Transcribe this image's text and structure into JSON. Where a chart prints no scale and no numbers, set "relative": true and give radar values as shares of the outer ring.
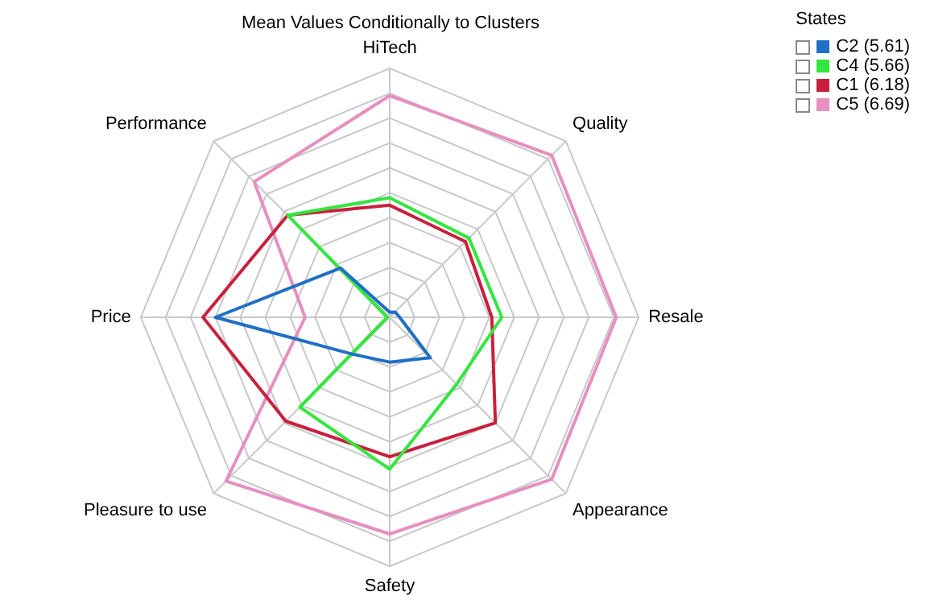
{
  "chart_data": {
    "type": "radar",
    "title": "Mean Values Conditionally to Clusters",
    "legend_title": "States",
    "relative": true,
    "grid": true,
    "legend": "top right",
    "marker": "none",
    "categories": [
      "HiTech",
      "Quality",
      "Resale",
      "Appearance",
      "Safety",
      "Pleasure to use",
      "Price",
      "Performance"
    ],
    "series": [
      {
        "name": "C2 (5.61)",
        "color": "#1f6fc5",
        "values": [
          0.02,
          0.03,
          0.04,
          0.23,
          0.18,
          0.21,
          0.7,
          0.28
        ]
      },
      {
        "name": "C4 (5.66)",
        "color": "#33e63f",
        "values": [
          0.48,
          0.45,
          0.45,
          0.38,
          0.61,
          0.51,
          0.01,
          0.58
        ]
      },
      {
        "name": "C1 (6.18)",
        "color": "#c8203c",
        "values": [
          0.45,
          0.43,
          0.41,
          0.6,
          0.56,
          0.59,
          0.75,
          0.58
        ]
      },
      {
        "name": "C5 (6.69)",
        "color": "#e68fc0",
        "values": [
          0.89,
          0.92,
          0.91,
          0.92,
          0.87,
          0.93,
          0.34,
          0.77
        ]
      }
    ]
  }
}
